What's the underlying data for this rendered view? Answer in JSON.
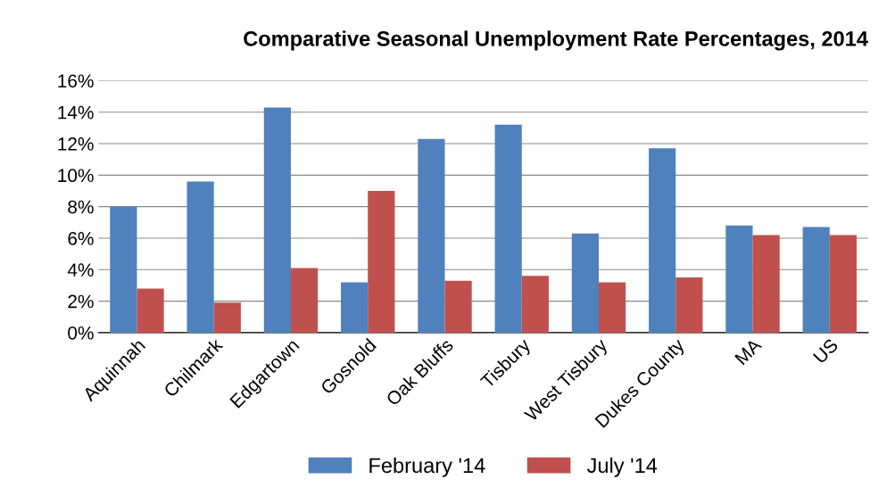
{
  "chart_data": {
    "type": "bar",
    "title": "Comparative Seasonal Unemployment Rate Percentages, 2014",
    "categories": [
      "Aquinnah",
      "Chilmark",
      "Edgartown",
      "Gosnold",
      "Oak Bluffs",
      "Tisbury",
      "West Tisbury",
      "Dukes County",
      "MA",
      "US"
    ],
    "series": [
      {
        "name": "February '14",
        "color": "#4f81bd",
        "values": [
          8.0,
          9.6,
          14.3,
          3.2,
          12.3,
          13.2,
          6.3,
          11.7,
          6.8,
          6.7
        ]
      },
      {
        "name": "July '14",
        "color": "#c0504d",
        "values": [
          2.8,
          1.9,
          4.1,
          9.0,
          3.3,
          3.6,
          3.2,
          3.5,
          6.2,
          6.2
        ]
      }
    ],
    "ylim": [
      0,
      16
    ],
    "yticks": [
      {
        "value": 0,
        "label": "0%"
      },
      {
        "value": 2,
        "label": "2%"
      },
      {
        "value": 4,
        "label": "4%"
      },
      {
        "value": 6,
        "label": "6%"
      },
      {
        "value": 8,
        "label": "8%"
      },
      {
        "value": 10,
        "label": "10%"
      },
      {
        "value": 12,
        "label": "12%"
      },
      {
        "value": 14,
        "label": "14%"
      },
      {
        "value": 16,
        "label": "16%"
      }
    ],
    "grid": "y",
    "legend": "bottom"
  }
}
